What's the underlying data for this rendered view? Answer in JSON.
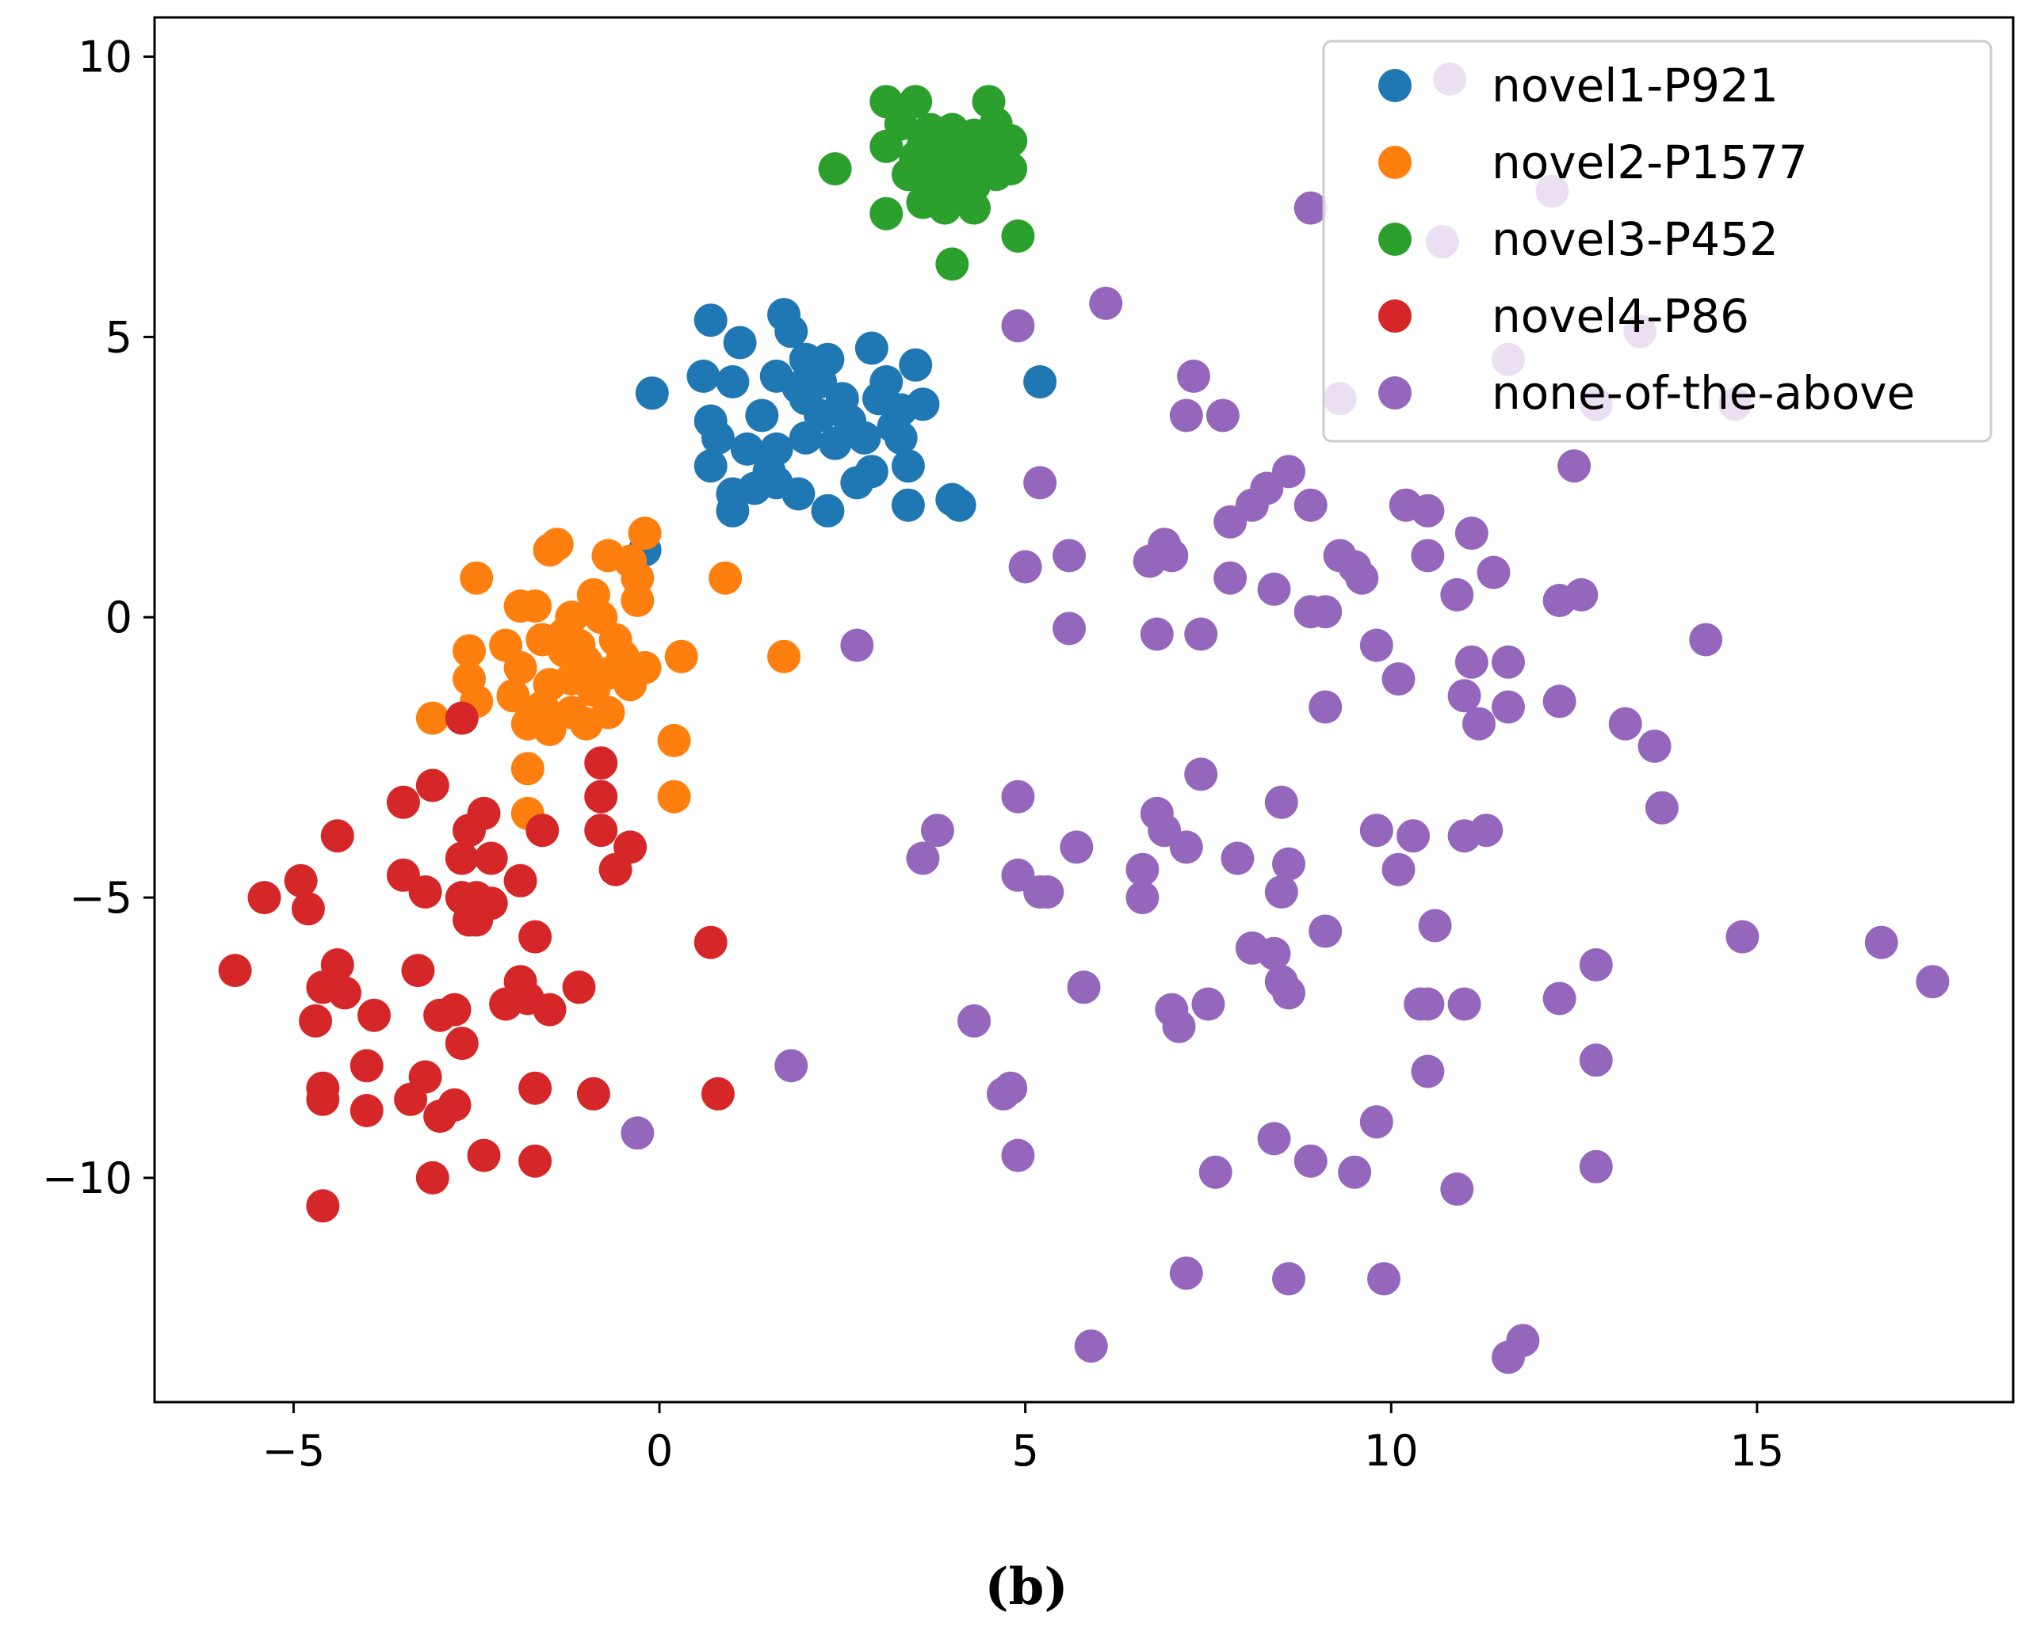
{
  "chart_data": {
    "type": "scatter",
    "title": "",
    "xlabel": "",
    "ylabel": "",
    "caption": "(b)",
    "xlim": [
      -6.9,
      18.5
    ],
    "ylim": [
      -14.0,
      10.7
    ],
    "x_ticks": [
      -5,
      0,
      5,
      10,
      15
    ],
    "x_tick_labels": [
      "−5",
      "0",
      "5",
      "10",
      "15"
    ],
    "y_ticks": [
      -10,
      -5,
      0,
      5,
      10
    ],
    "y_tick_labels": [
      "−10",
      "−5",
      "0",
      "5",
      "10"
    ],
    "legend_position": "top-right",
    "grid": false,
    "series": [
      {
        "name": "novel1-P921",
        "color": "#1f77b4",
        "points": [
          [
            -0.1,
            4.0
          ],
          [
            0.7,
            5.3
          ],
          [
            0.6,
            4.3
          ],
          [
            1.1,
            4.9
          ],
          [
            1.0,
            4.2
          ],
          [
            0.7,
            3.5
          ],
          [
            0.8,
            3.2
          ],
          [
            0.7,
            2.7
          ],
          [
            1.0,
            2.2
          ],
          [
            1.0,
            1.9
          ],
          [
            1.4,
            3.6
          ],
          [
            1.6,
            3.0
          ],
          [
            1.5,
            2.6
          ],
          [
            1.6,
            2.4
          ],
          [
            1.7,
            5.4
          ],
          [
            1.8,
            5.1
          ],
          [
            1.6,
            4.3
          ],
          [
            1.9,
            4.1
          ],
          [
            2.0,
            3.9
          ],
          [
            2.2,
            3.6
          ],
          [
            2.0,
            3.2
          ],
          [
            1.9,
            2.2
          ],
          [
            2.3,
            1.9
          ],
          [
            2.3,
            4.6
          ],
          [
            2.5,
            3.9
          ],
          [
            2.6,
            3.5
          ],
          [
            2.8,
            3.2
          ],
          [
            2.7,
            2.4
          ],
          [
            2.9,
            4.8
          ],
          [
            3.1,
            4.2
          ],
          [
            3.3,
            3.7
          ],
          [
            3.4,
            2.7
          ],
          [
            3.4,
            2.0
          ],
          [
            3.5,
            4.5
          ],
          [
            3.6,
            3.8
          ],
          [
            3.3,
            3.2
          ],
          [
            4.0,
            2.1
          ],
          [
            4.1,
            2.0
          ],
          [
            5.2,
            4.2
          ],
          [
            -0.2,
            1.2
          ],
          [
            2.0,
            4.6
          ],
          [
            2.4,
            3.1
          ],
          [
            1.2,
            3.0
          ],
          [
            1.3,
            2.3
          ],
          [
            2.9,
            2.6
          ],
          [
            3.0,
            3.9
          ],
          [
            3.2,
            3.4
          ],
          [
            2.2,
            4.2
          ]
        ]
      },
      {
        "name": "novel2-P1577",
        "color": "#ff7f0e",
        "points": [
          [
            -0.2,
            1.5
          ],
          [
            -0.4,
            1.0
          ],
          [
            -0.3,
            0.7
          ],
          [
            -0.7,
            1.1
          ],
          [
            -1.4,
            1.3
          ],
          [
            -1.5,
            1.2
          ],
          [
            -2.5,
            0.7
          ],
          [
            -1.9,
            0.2
          ],
          [
            -1.7,
            0.2
          ],
          [
            -1.2,
            0.0
          ],
          [
            -0.9,
            0.4
          ],
          [
            -1.6,
            -0.4
          ],
          [
            -1.3,
            -0.6
          ],
          [
            -1.0,
            -0.8
          ],
          [
            -0.7,
            -1.0
          ],
          [
            -0.5,
            -0.7
          ],
          [
            -1.9,
            -0.9
          ],
          [
            -1.5,
            -1.2
          ],
          [
            -1.2,
            -1.1
          ],
          [
            -0.9,
            -1.3
          ],
          [
            -0.7,
            -1.7
          ],
          [
            -0.4,
            -1.2
          ],
          [
            -0.2,
            -0.9
          ],
          [
            -2.6,
            -0.6
          ],
          [
            -2.6,
            -1.1
          ],
          [
            -2.5,
            -1.5
          ],
          [
            -3.1,
            -1.8
          ],
          [
            -2.0,
            -1.4
          ],
          [
            -1.8,
            -1.9
          ],
          [
            -1.5,
            -2.0
          ],
          [
            -1.8,
            -2.7
          ],
          [
            -1.8,
            -3.5
          ],
          [
            -1.0,
            -1.9
          ],
          [
            -0.3,
            0.3
          ],
          [
            0.3,
            -0.7
          ],
          [
            0.2,
            -2.2
          ],
          [
            0.2,
            -3.2
          ],
          [
            0.9,
            0.7
          ],
          [
            1.7,
            -0.7
          ],
          [
            -1.3,
            -0.3
          ],
          [
            -1.1,
            -0.5
          ],
          [
            -2.1,
            -0.5
          ],
          [
            -0.6,
            -0.4
          ],
          [
            -1.6,
            -1.6
          ],
          [
            -1.2,
            -1.7
          ],
          [
            -0.8,
            0.0
          ]
        ]
      },
      {
        "name": "novel3-P452",
        "color": "#2ca02c",
        "points": [
          [
            3.1,
            9.2
          ],
          [
            3.5,
            9.2
          ],
          [
            4.5,
            9.2
          ],
          [
            3.3,
            8.8
          ],
          [
            3.7,
            8.7
          ],
          [
            4.0,
            8.7
          ],
          [
            4.3,
            8.6
          ],
          [
            4.6,
            8.8
          ],
          [
            4.8,
            8.5
          ],
          [
            3.1,
            8.4
          ],
          [
            3.5,
            8.2
          ],
          [
            3.9,
            8.3
          ],
          [
            4.2,
            8.2
          ],
          [
            4.5,
            8.1
          ],
          [
            4.8,
            8.0
          ],
          [
            3.4,
            7.9
          ],
          [
            3.7,
            7.7
          ],
          [
            4.0,
            7.6
          ],
          [
            4.3,
            7.7
          ],
          [
            4.6,
            7.9
          ],
          [
            3.6,
            7.4
          ],
          [
            3.9,
            7.3
          ],
          [
            4.3,
            7.3
          ],
          [
            3.1,
            7.2
          ],
          [
            2.4,
            8.0
          ],
          [
            4.9,
            6.8
          ],
          [
            4.0,
            6.3
          ],
          [
            3.8,
            8.0
          ],
          [
            4.1,
            7.9
          ],
          [
            4.4,
            8.4
          ],
          [
            3.6,
            8.4
          ],
          [
            4.7,
            8.2
          ]
        ]
      },
      {
        "name": "novel4-P86",
        "color": "#d62728",
        "points": [
          [
            -2.7,
            -1.8
          ],
          [
            -3.1,
            -3.0
          ],
          [
            -3.5,
            -3.3
          ],
          [
            -2.4,
            -3.5
          ],
          [
            -2.6,
            -3.8
          ],
          [
            -1.6,
            -3.8
          ],
          [
            -0.8,
            -2.6
          ],
          [
            -0.8,
            -3.2
          ],
          [
            -0.8,
            -3.8
          ],
          [
            -0.4,
            -4.1
          ],
          [
            -0.6,
            -4.5
          ],
          [
            -2.7,
            -4.3
          ],
          [
            -2.3,
            -4.3
          ],
          [
            -3.5,
            -4.6
          ],
          [
            -3.2,
            -4.9
          ],
          [
            -2.7,
            -5.0
          ],
          [
            -2.5,
            -5.0
          ],
          [
            -2.3,
            -5.1
          ],
          [
            -1.9,
            -4.7
          ],
          [
            -1.7,
            -5.7
          ],
          [
            -2.6,
            -5.4
          ],
          [
            -2.5,
            -5.4
          ],
          [
            -4.4,
            -3.9
          ],
          [
            -4.9,
            -4.7
          ],
          [
            -5.4,
            -5.0
          ],
          [
            -4.8,
            -5.2
          ],
          [
            -5.8,
            -6.3
          ],
          [
            -4.4,
            -6.2
          ],
          [
            -4.6,
            -6.6
          ],
          [
            -4.3,
            -6.7
          ],
          [
            -4.7,
            -7.2
          ],
          [
            -3.9,
            -7.1
          ],
          [
            -3.3,
            -6.3
          ],
          [
            -2.8,
            -7.0
          ],
          [
            -3.0,
            -7.1
          ],
          [
            -2.7,
            -7.6
          ],
          [
            -1.9,
            -6.5
          ],
          [
            -2.1,
            -6.9
          ],
          [
            -1.8,
            -6.8
          ],
          [
            -1.5,
            -7.0
          ],
          [
            -1.1,
            -6.6
          ],
          [
            -4.0,
            -8.0
          ],
          [
            -3.2,
            -8.2
          ],
          [
            -3.4,
            -8.6
          ],
          [
            -3.0,
            -8.9
          ],
          [
            -2.8,
            -8.7
          ],
          [
            -1.7,
            -8.4
          ],
          [
            -4.6,
            -8.4
          ],
          [
            -4.6,
            -8.6
          ],
          [
            -4.0,
            -8.8
          ],
          [
            -0.9,
            -8.5
          ],
          [
            -3.1,
            -10.0
          ],
          [
            -2.4,
            -9.6
          ],
          [
            -1.7,
            -9.7
          ],
          [
            -4.6,
            -10.5
          ],
          [
            0.7,
            -5.8
          ],
          [
            0.8,
            -8.5
          ]
        ]
      },
      {
        "name": "none-of-the-above",
        "color": "#9467bd",
        "points": [
          [
            4.9,
            5.2
          ],
          [
            6.1,
            5.6
          ],
          [
            5.2,
            2.4
          ],
          [
            5.0,
            0.9
          ],
          [
            5.6,
            1.1
          ],
          [
            5.6,
            -0.2
          ],
          [
            2.7,
            -0.5
          ],
          [
            7.3,
            4.3
          ],
          [
            7.2,
            3.6
          ],
          [
            7.7,
            3.6
          ],
          [
            6.9,
            1.3
          ],
          [
            7.0,
            1.1
          ],
          [
            6.7,
            1.0
          ],
          [
            6.8,
            -0.3
          ],
          [
            7.4,
            -0.3
          ],
          [
            7.8,
            0.7
          ],
          [
            7.8,
            1.7
          ],
          [
            8.1,
            2.0
          ],
          [
            8.3,
            2.3
          ],
          [
            8.6,
            2.6
          ],
          [
            8.9,
            2.0
          ],
          [
            8.4,
            0.5
          ],
          [
            8.9,
            0.1
          ],
          [
            9.1,
            0.1
          ],
          [
            9.3,
            1.1
          ],
          [
            9.5,
            0.9
          ],
          [
            9.6,
            0.7
          ],
          [
            9.8,
            -0.5
          ],
          [
            10.1,
            -1.1
          ],
          [
            10.2,
            2.0
          ],
          [
            10.5,
            1.9
          ],
          [
            10.5,
            1.1
          ],
          [
            10.9,
            0.4
          ],
          [
            11.1,
            1.5
          ],
          [
            11.4,
            0.8
          ],
          [
            11.1,
            -0.8
          ],
          [
            11.6,
            -0.8
          ],
          [
            11.0,
            -1.4
          ],
          [
            11.2,
            -1.9
          ],
          [
            11.6,
            -1.6
          ],
          [
            12.3,
            0.3
          ],
          [
            12.6,
            0.4
          ],
          [
            12.3,
            -1.5
          ],
          [
            13.2,
            -1.9
          ],
          [
            13.6,
            -2.3
          ],
          [
            14.3,
            -0.4
          ],
          [
            13.7,
            -3.4
          ],
          [
            9.1,
            -1.6
          ],
          [
            7.4,
            -2.8
          ],
          [
            8.5,
            -3.3
          ],
          [
            6.8,
            -3.5
          ],
          [
            6.9,
            -3.8
          ],
          [
            7.2,
            -4.1
          ],
          [
            7.9,
            -4.3
          ],
          [
            8.6,
            -4.4
          ],
          [
            8.5,
            -4.9
          ],
          [
            6.6,
            -4.5
          ],
          [
            6.6,
            -5.0
          ],
          [
            5.7,
            -4.1
          ],
          [
            5.2,
            -4.9
          ],
          [
            4.9,
            -4.6
          ],
          [
            5.3,
            -4.9
          ],
          [
            4.9,
            -3.2
          ],
          [
            3.8,
            -3.8
          ],
          [
            3.6,
            -4.3
          ],
          [
            9.8,
            -3.8
          ],
          [
            10.3,
            -3.9
          ],
          [
            10.1,
            -4.5
          ],
          [
            11.0,
            -3.9
          ],
          [
            11.3,
            -3.8
          ],
          [
            10.6,
            -5.5
          ],
          [
            9.1,
            -5.6
          ],
          [
            8.1,
            -5.9
          ],
          [
            8.4,
            -6.0
          ],
          [
            8.5,
            -6.5
          ],
          [
            8.6,
            -6.7
          ],
          [
            7.5,
            -6.9
          ],
          [
            7.0,
            -7.0
          ],
          [
            7.1,
            -7.3
          ],
          [
            5.8,
            -6.6
          ],
          [
            4.3,
            -7.2
          ],
          [
            10.4,
            -6.9
          ],
          [
            10.5,
            -6.9
          ],
          [
            11.0,
            -6.9
          ],
          [
            12.3,
            -6.8
          ],
          [
            12.8,
            -6.2
          ],
          [
            14.8,
            -5.7
          ],
          [
            16.7,
            -5.8
          ],
          [
            17.4,
            -6.5
          ],
          [
            12.8,
            -7.9
          ],
          [
            10.5,
            -8.1
          ],
          [
            1.8,
            -8.0
          ],
          [
            4.7,
            -8.5
          ],
          [
            4.8,
            -8.4
          ],
          [
            4.9,
            -9.6
          ],
          [
            8.4,
            -9.3
          ],
          [
            8.9,
            -9.7
          ],
          [
            9.8,
            -9.0
          ],
          [
            9.5,
            -9.9
          ],
          [
            7.6,
            -9.9
          ],
          [
            10.9,
            -10.2
          ],
          [
            12.8,
            -9.8
          ],
          [
            -0.3,
            -9.2
          ],
          [
            7.2,
            -11.7
          ],
          [
            8.6,
            -11.8
          ],
          [
            9.9,
            -11.8
          ],
          [
            5.9,
            -13.0
          ],
          [
            11.6,
            -13.2
          ],
          [
            11.8,
            -12.9
          ],
          [
            8.9,
            7.3
          ],
          [
            10.8,
            9.6
          ],
          [
            10.7,
            6.7
          ],
          [
            12.2,
            7.6
          ],
          [
            11.6,
            4.6
          ],
          [
            13.4,
            5.1
          ],
          [
            9.3,
            3.9
          ],
          [
            12.8,
            3.8
          ],
          [
            12.5,
            2.7
          ],
          [
            14.7,
            3.8
          ]
        ]
      }
    ]
  }
}
